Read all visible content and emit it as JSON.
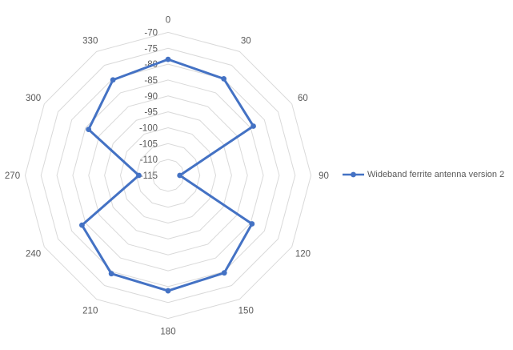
{
  "chart_data": {
    "type": "radar",
    "title": "",
    "categories": [
      0,
      30,
      60,
      90,
      120,
      150,
      180,
      210,
      240,
      270,
      300,
      330
    ],
    "series": [
      {
        "name": "Wideband ferrite antenna version 2",
        "color": "#4472C4",
        "values": [
          -78.5,
          -79.9,
          -84.0,
          -111.3,
          -84.5,
          -79.6,
          -78.7,
          -79.3,
          -83.7,
          -105.8,
          -86.1,
          -80.3
        ]
      }
    ],
    "angular_axis": {
      "unit": "degrees",
      "direction": "clockwise",
      "start": "top"
    },
    "radial_axis": {
      "min": -115,
      "max": -70,
      "step": 5,
      "tick_labels": [
        "-70",
        "-75",
        "-80",
        "-85",
        "-90",
        "-95",
        "-100",
        "-105",
        "-110",
        "-115"
      ]
    },
    "grid": true,
    "gridline_color": "#D9D9D9",
    "axis_label_color": "#595959",
    "legend_position": "right"
  }
}
